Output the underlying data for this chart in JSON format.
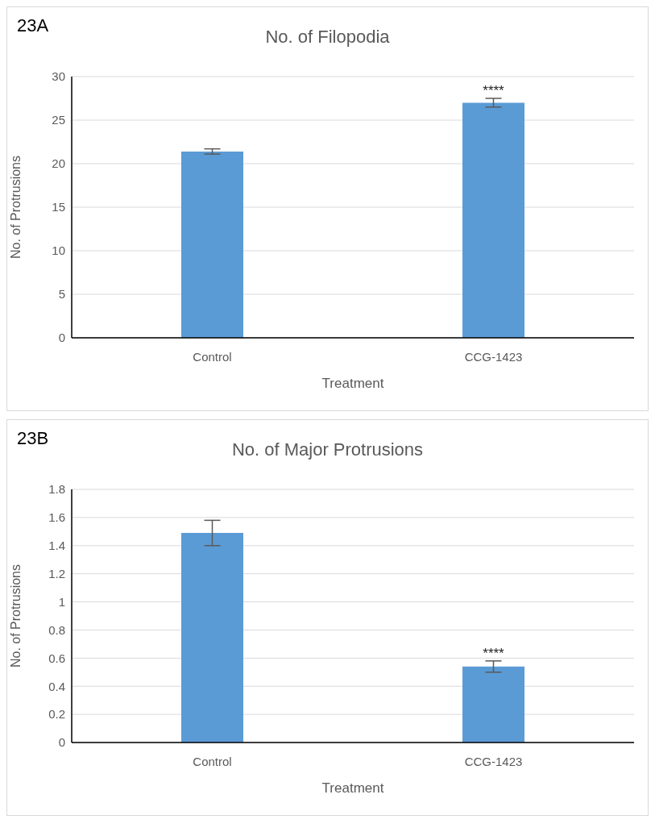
{
  "chart_data": [
    {
      "type": "bar",
      "title": "No. of Filopodia",
      "xlabel": "Treatment",
      "ylabel": "No. of Protrusions",
      "categories": [
        "Control",
        "CCG-1423"
      ],
      "values": [
        21.4,
        27.0
      ],
      "errors": [
        0.3,
        0.5
      ],
      "color": "#5b9bd5",
      "ylim": [
        0,
        30
      ],
      "yticks": [
        0,
        5,
        10,
        15,
        20,
        25,
        30
      ],
      "grid": "y",
      "annotations": [
        "23A",
        {
          "text": "****",
          "x": "CCG-1423",
          "y": 27.5
        }
      ]
    },
    {
      "type": "bar",
      "title": "No. of Major Protrusions",
      "xlabel": "Treatment",
      "ylabel": "No. of Protrusions",
      "categories": [
        "Control",
        "CCG-1423"
      ],
      "values": [
        1.49,
        0.54
      ],
      "errors": [
        0.09,
        0.04
      ],
      "color": "#5b9bd5",
      "ylim": [
        0,
        1.8
      ],
      "yticks": [
        0,
        0.2,
        0.4,
        0.6,
        0.8,
        1,
        1.2,
        1.4,
        1.6,
        1.8
      ],
      "grid": "y",
      "annotations": [
        "23B",
        {
          "text": "****",
          "x": "CCG-1423",
          "y": 0.58
        }
      ]
    }
  ]
}
